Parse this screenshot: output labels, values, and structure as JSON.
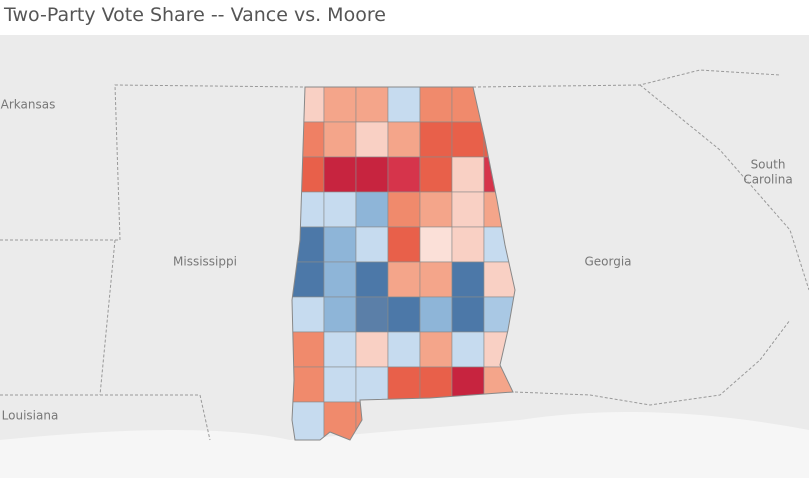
{
  "title": "Two-Party Vote Share -- Vance vs. Moore",
  "map": {
    "labels": [
      [
        "Arkansas"
      ],
      [
        "Mississippi"
      ],
      [
        "Louisiana"
      ],
      [
        "Georgia"
      ],
      [
        "South",
        "Carolina"
      ]
    ]
  }
}
